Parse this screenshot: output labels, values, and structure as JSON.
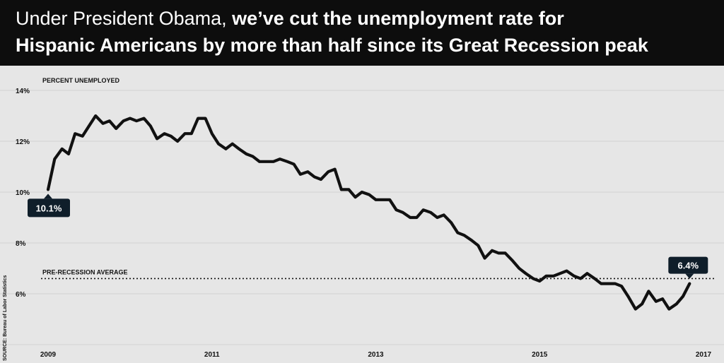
{
  "header": {
    "title_part1": "Under President Obama,",
    "title_part2": "we’ve cut the unemployment rate for",
    "title_line2": "Hispanic Americans by more than half since its Great Recession peak"
  },
  "source": "SOURCE: Bureau of Labor Statistics",
  "colors": {
    "header_bg": "#0d0d0d",
    "plot_bg": "#e6e6e6",
    "line": "#111111"
  },
  "chart_data": {
    "type": "line",
    "ylabel": "PERCENT UNEMPLOYED",
    "ylim": [
      4,
      14
    ],
    "yticks": [
      6,
      8,
      10,
      12,
      14
    ],
    "ytick_labels": [
      "6%",
      "8%",
      "10%",
      "12%",
      "14%"
    ],
    "xlim": [
      2009,
      2017
    ],
    "xticks": [
      2009,
      2011,
      2013,
      2015,
      2017
    ],
    "xtick_labels": [
      "2009",
      "2011",
      "2013",
      "2015",
      "2017"
    ],
    "grid": true,
    "reference_line": {
      "label": "PRE-RECESSION AVERAGE",
      "value": 6.6
    },
    "annotations": [
      {
        "text": "10.1%",
        "x": 2009.0,
        "y": 10.1
      },
      {
        "text": "6.4%",
        "x": 2016.83,
        "y": 6.4
      }
    ],
    "series": [
      {
        "values": [
          [
            2009.0,
            10.1
          ],
          [
            2009.08,
            11.3
          ],
          [
            2009.17,
            11.7
          ],
          [
            2009.25,
            11.5
          ],
          [
            2009.33,
            12.3
          ],
          [
            2009.42,
            12.2
          ],
          [
            2009.5,
            12.6
          ],
          [
            2009.58,
            13.0
          ],
          [
            2009.67,
            12.7
          ],
          [
            2009.75,
            12.8
          ],
          [
            2009.83,
            12.5
          ],
          [
            2009.92,
            12.8
          ],
          [
            2010.0,
            12.9
          ],
          [
            2010.08,
            12.8
          ],
          [
            2010.17,
            12.9
          ],
          [
            2010.25,
            12.6
          ],
          [
            2010.33,
            12.1
          ],
          [
            2010.42,
            12.3
          ],
          [
            2010.5,
            12.2
          ],
          [
            2010.58,
            12.0
          ],
          [
            2010.67,
            12.3
          ],
          [
            2010.75,
            12.3
          ],
          [
            2010.83,
            12.9
          ],
          [
            2010.92,
            12.9
          ],
          [
            2011.0,
            12.3
          ],
          [
            2011.08,
            11.9
          ],
          [
            2011.17,
            11.7
          ],
          [
            2011.25,
            11.9
          ],
          [
            2011.33,
            11.7
          ],
          [
            2011.42,
            11.5
          ],
          [
            2011.5,
            11.4
          ],
          [
            2011.58,
            11.2
          ],
          [
            2011.67,
            11.2
          ],
          [
            2011.75,
            11.2
          ],
          [
            2011.83,
            11.3
          ],
          [
            2011.92,
            11.2
          ],
          [
            2012.0,
            11.1
          ],
          [
            2012.08,
            10.7
          ],
          [
            2012.17,
            10.8
          ],
          [
            2012.25,
            10.6
          ],
          [
            2012.33,
            10.5
          ],
          [
            2012.42,
            10.8
          ],
          [
            2012.5,
            10.9
          ],
          [
            2012.58,
            10.1
          ],
          [
            2012.67,
            10.1
          ],
          [
            2012.75,
            9.8
          ],
          [
            2012.83,
            10.0
          ],
          [
            2012.92,
            9.9
          ],
          [
            2013.0,
            9.7
          ],
          [
            2013.08,
            9.7
          ],
          [
            2013.17,
            9.7
          ],
          [
            2013.25,
            9.3
          ],
          [
            2013.33,
            9.2
          ],
          [
            2013.42,
            9.0
          ],
          [
            2013.5,
            9.0
          ],
          [
            2013.58,
            9.3
          ],
          [
            2013.67,
            9.2
          ],
          [
            2013.75,
            9.0
          ],
          [
            2013.83,
            9.1
          ],
          [
            2013.92,
            8.8
          ],
          [
            2014.0,
            8.4
          ],
          [
            2014.08,
            8.3
          ],
          [
            2014.17,
            8.1
          ],
          [
            2014.25,
            7.9
          ],
          [
            2014.33,
            7.4
          ],
          [
            2014.42,
            7.7
          ],
          [
            2014.5,
            7.6
          ],
          [
            2014.58,
            7.6
          ],
          [
            2014.67,
            7.3
          ],
          [
            2014.75,
            7.0
          ],
          [
            2014.83,
            6.8
          ],
          [
            2014.92,
            6.6
          ],
          [
            2015.0,
            6.5
          ],
          [
            2015.08,
            6.7
          ],
          [
            2015.17,
            6.7
          ],
          [
            2015.25,
            6.8
          ],
          [
            2015.33,
            6.9
          ],
          [
            2015.42,
            6.7
          ],
          [
            2015.5,
            6.6
          ],
          [
            2015.58,
            6.8
          ],
          [
            2015.67,
            6.6
          ],
          [
            2015.75,
            6.4
          ],
          [
            2015.83,
            6.4
          ],
          [
            2015.92,
            6.4
          ],
          [
            2016.0,
            6.3
          ],
          [
            2016.08,
            5.9
          ],
          [
            2016.17,
            5.4
          ],
          [
            2016.25,
            5.6
          ],
          [
            2016.33,
            6.1
          ],
          [
            2016.42,
            5.7
          ],
          [
            2016.5,
            5.8
          ],
          [
            2016.58,
            5.4
          ],
          [
            2016.67,
            5.6
          ],
          [
            2016.75,
            5.9
          ],
          [
            2016.83,
            6.4
          ]
        ]
      }
    ]
  }
}
